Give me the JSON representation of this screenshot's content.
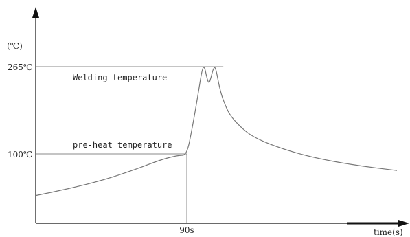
{
  "chart_data": {
    "type": "line",
    "ylabel": "(℃)",
    "xlabel": "time(s)",
    "y_ticks": [
      {
        "value": 265,
        "label": "265℃"
      },
      {
        "value": 100,
        "label": "100℃"
      }
    ],
    "x_ticks": [
      {
        "value": 90,
        "label": "90s"
      }
    ],
    "annotations": {
      "welding": "Welding temperature",
      "preheat": "pre-heat temperature"
    },
    "ylim": [
      0,
      300
    ],
    "xlim": [
      0,
      280
    ],
    "grid": false,
    "series": [
      {
        "values": [
          [
            0,
            40
          ],
          [
            20,
            50
          ],
          [
            40,
            62
          ],
          [
            60,
            78
          ],
          [
            75,
            92
          ],
          [
            85,
            98
          ],
          [
            90,
            98
          ],
          [
            95,
            150
          ],
          [
            100,
            210
          ],
          [
            104,
            262
          ],
          [
            106,
            265
          ],
          [
            108,
            245
          ],
          [
            110,
            232
          ],
          [
            112,
            245
          ],
          [
            114,
            262
          ],
          [
            116,
            265
          ],
          [
            120,
            220
          ],
          [
            125,
            190
          ],
          [
            130,
            170
          ],
          [
            140,
            148
          ],
          [
            150,
            132
          ],
          [
            170,
            114
          ],
          [
            200,
            96
          ],
          [
            240,
            84
          ],
          [
            280,
            76
          ]
        ]
      }
    ]
  }
}
